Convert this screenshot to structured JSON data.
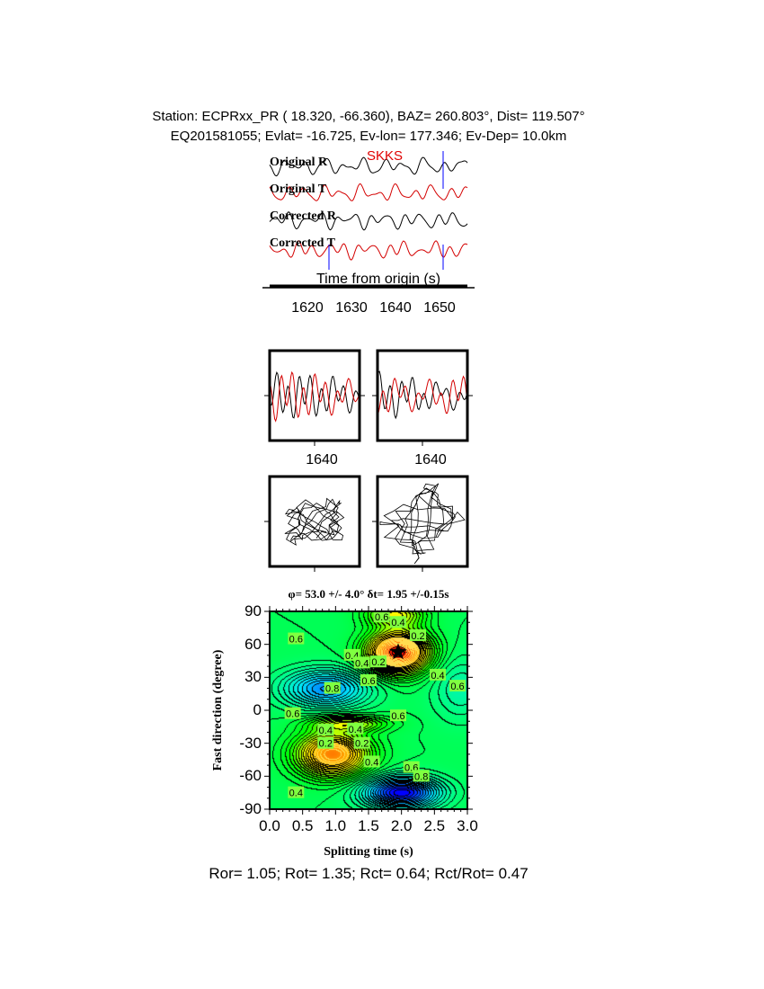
{
  "header": {
    "station_line": "Station: ECPRxx_PR (  18.320,  -66.360), BAZ=  260.803°, Dist=  119.507°",
    "event_line": "EQ201581055; Evlat= -16.725, Ev-lon= 177.346; Ev-Dep= 10.0km"
  },
  "traces": {
    "labels": [
      "Original R",
      "Original T",
      "Corrected R",
      "Corrected T"
    ],
    "colors": [
      "#000000",
      "#d40000",
      "#000000",
      "#d40000"
    ],
    "phase": "SKKS",
    "phase_color": "#e00000",
    "marker_color": "#0000ff",
    "xlabel": "Time from origin (s)",
    "xticks": [
      "1620",
      "1630",
      "1640",
      "1650"
    ]
  },
  "windows": {
    "tick_labels": [
      "1640",
      "1640"
    ]
  },
  "chart_data": {
    "type": "heatmap",
    "title": "φ= 53.0 +/- 4.0° δt= 1.95 +/-0.15s",
    "xlabel": "Splitting time (s)",
    "ylabel": "Fast direction (degree)",
    "xlim": [
      0,
      3
    ],
    "ylim": [
      -90,
      90
    ],
    "xticks": [
      "0.0",
      "0.5",
      "1.0",
      "1.5",
      "2.0",
      "2.5",
      "3.0"
    ],
    "yticks": [
      "90",
      "60",
      "30",
      "0",
      "-30",
      "-60",
      "-90"
    ],
    "best_fit": {
      "splitting_time": 1.95,
      "fast_direction": 53.0,
      "marker": "star"
    },
    "contour_labels": [
      {
        "text": "0.6",
        "x": 1.7,
        "y": 85
      },
      {
        "text": "0.4",
        "x": 1.95,
        "y": 80
      },
      {
        "text": "0.2",
        "x": 2.25,
        "y": 68
      },
      {
        "text": "0.6",
        "x": 0.4,
        "y": 65
      },
      {
        "text": "0.4",
        "x": 1.25,
        "y": 50
      },
      {
        "text": "0.4",
        "x": 1.4,
        "y": 43
      },
      {
        "text": "0.2",
        "x": 1.65,
        "y": 44
      },
      {
        "text": "0.4",
        "x": 2.55,
        "y": 32
      },
      {
        "text": "0.6",
        "x": 1.5,
        "y": 27
      },
      {
        "text": "0.6",
        "x": 2.85,
        "y": 22
      },
      {
        "text": "0.8",
        "x": 0.95,
        "y": 20
      },
      {
        "text": "0.6",
        "x": 0.35,
        "y": -3
      },
      {
        "text": "0.6",
        "x": 1.95,
        "y": -5
      },
      {
        "text": "0.4",
        "x": 0.85,
        "y": -18
      },
      {
        "text": "0.4",
        "x": 1.3,
        "y": -17
      },
      {
        "text": "0.2",
        "x": 0.85,
        "y": -30
      },
      {
        "text": "0.2",
        "x": 1.4,
        "y": -30
      },
      {
        "text": "0.4",
        "x": 1.55,
        "y": -47
      },
      {
        "text": "0.6",
        "x": 2.15,
        "y": -52
      },
      {
        "text": "0.8",
        "x": 2.3,
        "y": -60
      },
      {
        "text": "0.4",
        "x": 0.4,
        "y": -75
      }
    ],
    "colorscale": [
      "#ff0000",
      "#ffa500",
      "#ffff00",
      "#00ff00",
      "#00ffff",
      "#0000ff"
    ]
  },
  "footer": {
    "ratios": "Ror= 1.05; Rot= 1.35; Rct= 0.64; Rct/Rot= 0.47"
  }
}
